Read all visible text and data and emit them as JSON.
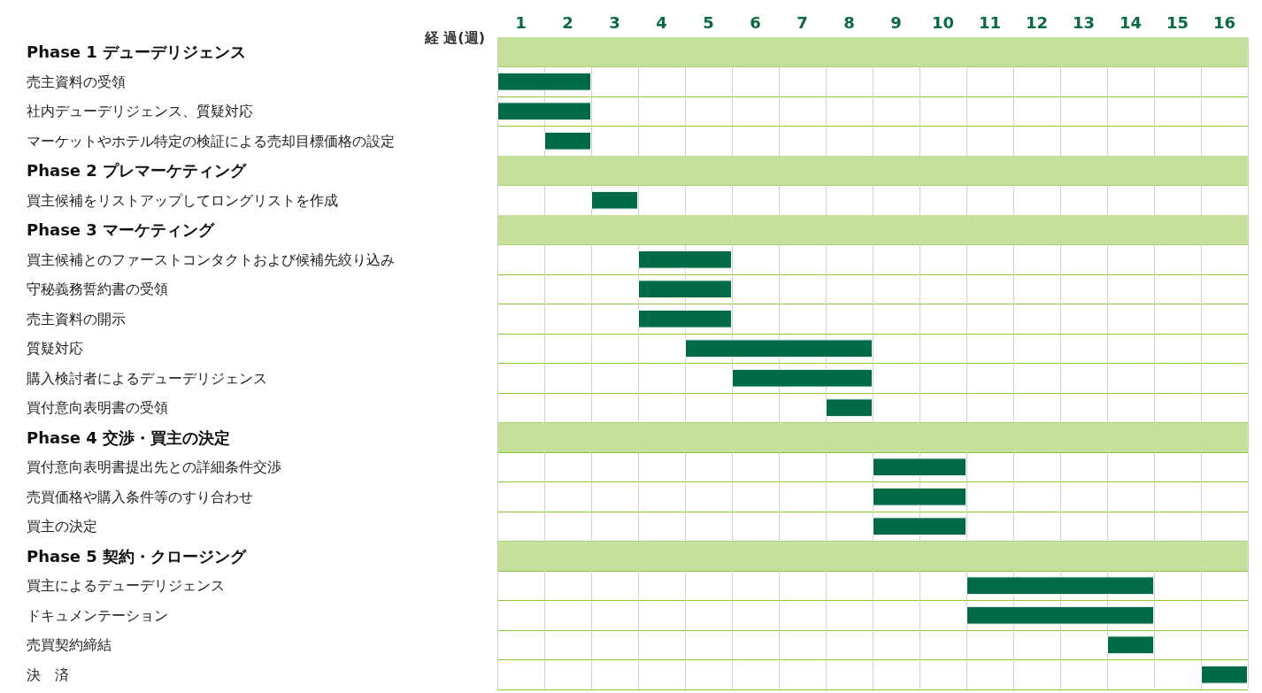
{
  "chart_data": {
    "type": "bar",
    "orientation": "horizontal",
    "xlabel": "経 過(週)",
    "categories": [
      "Phase 1 デューデリジェンス",
      "売主資料の受領",
      "社内デューデリジェンス、質疑対応",
      "マーケットやホテル特定の検証による売却目標価格の設定",
      "Phase 2 プレマーケティング",
      "買主候補をリストアップしてロングリストを作成",
      "Phase 3 マーケティング",
      "買主候補とのファーストコンタクトおよび候補先絞り込み",
      "守秘義務誓約書の受領",
      "売主資料の開示",
      "質疑対応",
      "購入検討者によるデューデリジェンス",
      "買付意向表明書の受領",
      "Phase 4 交渉・買主の決定",
      "買付意向表明書提出先との詳細条件交渉",
      "売買価格や購入条件等のすり合わせ",
      "買主の決定",
      "Phase 5 契約・クロージング",
      "買主によるデューデリジェンス",
      "ドキュメンテーション",
      "売買契約締結",
      "決　済"
    ],
    "base": [
      null,
      0,
      0,
      1,
      null,
      2,
      null,
      3,
      3,
      3,
      4,
      5,
      7,
      null,
      8,
      8,
      8,
      null,
      10,
      10,
      13,
      15
    ],
    "values": [
      null,
      2,
      2,
      1,
      null,
      1,
      null,
      2,
      2,
      2,
      4,
      3,
      1,
      null,
      2,
      2,
      2,
      null,
      4,
      4,
      1,
      1
    ],
    "color": "#006b45",
    "xlim": [
      0,
      16
    ],
    "xticks": [
      {
        "value": 0,
        "label": null
      },
      {
        "value": 0.5,
        "label": "1"
      },
      {
        "value": 1,
        "label": null
      },
      {
        "value": 1.5,
        "label": "2"
      },
      {
        "value": 2,
        "label": null
      },
      {
        "value": 2.5,
        "label": "3"
      },
      {
        "value": 3,
        "label": null
      },
      {
        "value": 3.5,
        "label": "4"
      },
      {
        "value": 4,
        "label": null
      },
      {
        "value": 4.5,
        "label": "5"
      },
      {
        "value": 5,
        "label": null
      },
      {
        "value": 5.5,
        "label": "6"
      },
      {
        "value": 6,
        "label": null
      },
      {
        "value": 6.5,
        "label": "7"
      },
      {
        "value": 7,
        "label": null
      },
      {
        "value": 7.5,
        "label": "8"
      },
      {
        "value": 8,
        "label": null
      },
      {
        "value": 8.5,
        "label": "9"
      },
      {
        "value": 9,
        "label": null
      },
      {
        "value": 9.5,
        "label": "10"
      },
      {
        "value": 10,
        "label": null
      },
      {
        "value": 10.5,
        "label": "11"
      },
      {
        "value": 11,
        "label": null
      },
      {
        "value": 11.5,
        "label": "12"
      },
      {
        "value": 12,
        "label": null
      },
      {
        "value": 12.5,
        "label": "13"
      },
      {
        "value": 13,
        "label": null
      },
      {
        "value": 13.5,
        "label": "14"
      },
      {
        "value": 14,
        "label": null
      },
      {
        "value": 14.5,
        "label": "15"
      },
      {
        "value": 15,
        "label": null
      },
      {
        "value": 15.5,
        "label": "16"
      },
      {
        "value": 16,
        "label": null
      }
    ],
    "grid": "x",
    "bands": [
      {
        "axis": "y",
        "from": "Phase 1 デューデリジェンス",
        "to": "Phase 1 デューデリジェンス",
        "color": "#c5df9c"
      },
      {
        "axis": "y",
        "from": "Phase 2 プレマーケティング",
        "to": "Phase 2 プレマーケティング",
        "color": "#c5df9c"
      },
      {
        "axis": "y",
        "from": "Phase 3 マーケティング",
        "to": "Phase 3 マーケティング",
        "color": "#c5df9c"
      },
      {
        "axis": "y",
        "from": "Phase 4 交渉・買主の決定",
        "to": "Phase 4 交渉・買主の決定",
        "color": "#c5df9c"
      },
      {
        "axis": "y",
        "from": "Phase 5 契約・クロージング",
        "to": "Phase 5 契約・クロージング",
        "color": "#c5df9c"
      }
    ]
  }
}
